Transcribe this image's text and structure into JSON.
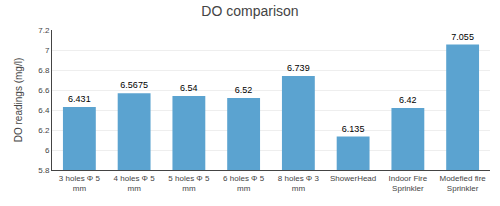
{
  "chart_data": {
    "type": "bar",
    "title": "DO comparison",
    "ylabel": "DO readings (mg/l)",
    "categories": [
      "3 holes Φ 5\nmm",
      "4 holes Φ 5\nmm",
      "5 holes Φ 5\nmm",
      "6 holes Φ 5\nmm",
      "8 holes Φ 3\nmm",
      "ShowerHead",
      "Indoor Fire\nSprinkler",
      "Modefied fire\nSprinkler"
    ],
    "values": [
      6.431,
      6.5675,
      6.54,
      6.52,
      6.739,
      6.135,
      6.42,
      7.055
    ],
    "color": "#5ba3d0",
    "ylim": [
      5.8,
      7.2
    ],
    "yticks": [
      5.8,
      6,
      6.2,
      6.4,
      6.6,
      6.8,
      7,
      7.2
    ],
    "grid": true,
    "data_labels": true
  }
}
